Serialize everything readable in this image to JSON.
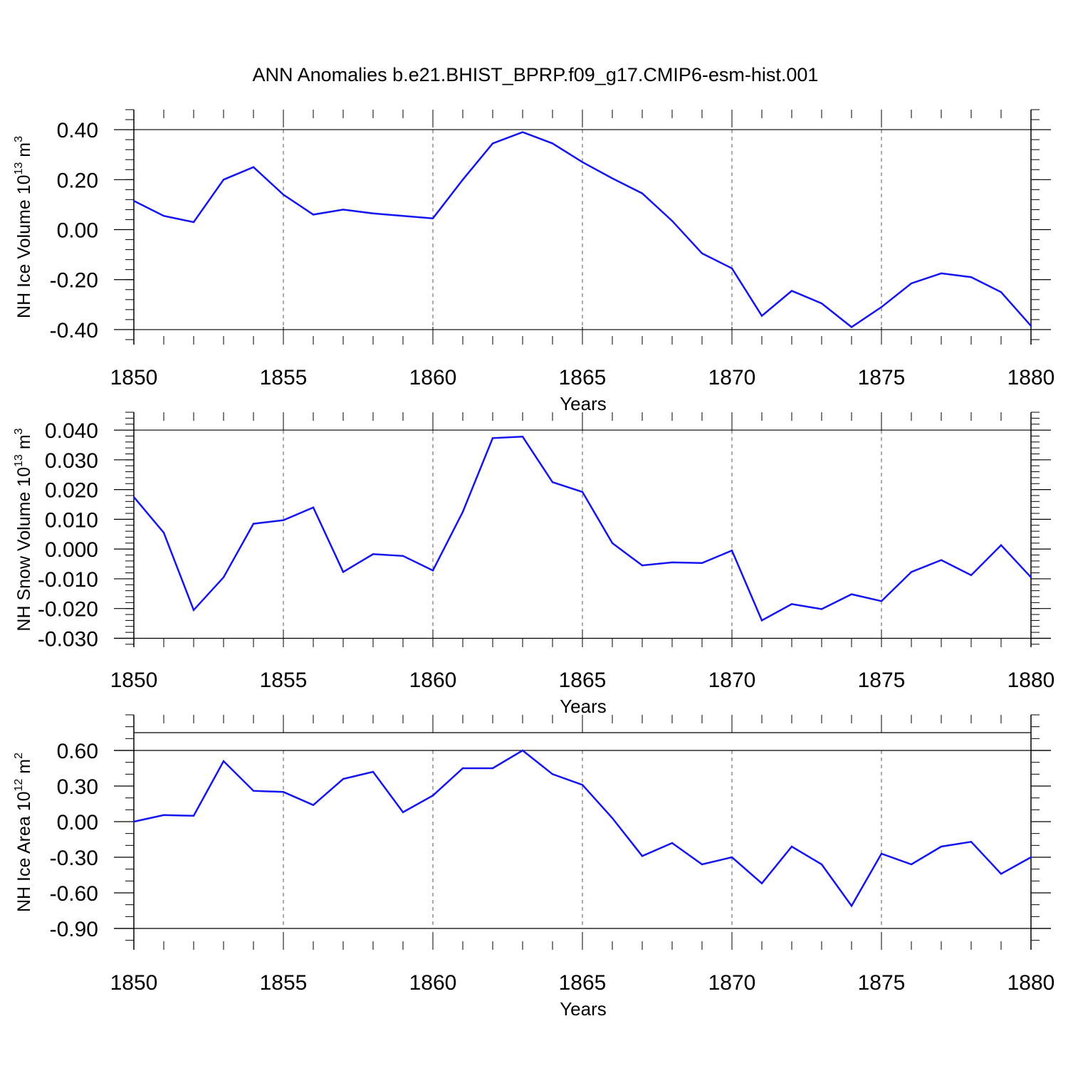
{
  "title": "ANN Anomalies b.e21.BHIST_BPRP.f09_g17.CMIP6-esm-hist.001",
  "colors": {
    "line": "#1414f0",
    "axis": "#000000",
    "grid": "#555555"
  },
  "chart_data": [
    {
      "type": "line",
      "ylabel": "NH Ice Volume 10",
      "ylabel_sup": "13",
      "ylabel_unit": " m",
      "ylabel_unit_sup": "3",
      "xlabel": "Years",
      "xlim": [
        1850,
        1880
      ],
      "ylim": [
        -0.46,
        0.48
      ],
      "yticks": [
        -0.4,
        -0.2,
        0.0,
        0.2,
        0.4
      ],
      "ytick_labels": [
        "-0.40",
        "-0.20",
        "0.00",
        "0.20",
        "0.40"
      ],
      "yminor_step": 0.04,
      "xticks": [
        1850,
        1855,
        1860,
        1865,
        1870,
        1875,
        1880
      ],
      "xtick_labels": [
        "1850",
        "1855",
        "1860",
        "1865",
        "1870",
        "1875",
        "1880"
      ],
      "grid": "dashed vertical at major x ticks",
      "x": [
        1850,
        1851,
        1852,
        1853,
        1854,
        1855,
        1856,
        1857,
        1858,
        1859,
        1860,
        1861,
        1862,
        1863,
        1864,
        1865,
        1866,
        1867,
        1868,
        1869,
        1870,
        1871,
        1872,
        1873,
        1874,
        1875,
        1876,
        1877,
        1878,
        1879,
        1880
      ],
      "values": [
        0.115,
        0.055,
        0.03,
        0.2,
        0.25,
        0.14,
        0.06,
        0.08,
        0.065,
        0.055,
        0.045,
        0.2,
        0.345,
        0.39,
        0.345,
        0.27,
        0.205,
        0.145,
        0.035,
        -0.095,
        -0.155,
        -0.345,
        -0.245,
        -0.295,
        -0.39,
        -0.31,
        -0.215,
        -0.175,
        -0.19,
        -0.25,
        -0.385
      ]
    },
    {
      "type": "line",
      "ylabel": "NH Snow Volume 10",
      "ylabel_sup": "13",
      "ylabel_unit": " m",
      "ylabel_unit_sup": "3",
      "xlabel": "Years",
      "xlim": [
        1850,
        1880
      ],
      "ylim": [
        -0.033,
        0.046
      ],
      "yticks": [
        -0.03,
        -0.02,
        -0.01,
        0.0,
        0.01,
        0.02,
        0.03,
        0.04
      ],
      "ytick_labels": [
        "-0.030",
        "-0.020",
        "-0.010",
        "0.000",
        "0.010",
        "0.020",
        "0.030",
        "0.040"
      ],
      "yminor_step": 0.002,
      "xticks": [
        1850,
        1855,
        1860,
        1865,
        1870,
        1875,
        1880
      ],
      "xtick_labels": [
        "1850",
        "1855",
        "1860",
        "1865",
        "1870",
        "1875",
        "1880"
      ],
      "grid": "dashed vertical at major x ticks",
      "x": [
        1850,
        1851,
        1852,
        1853,
        1854,
        1855,
        1856,
        1857,
        1858,
        1859,
        1860,
        1861,
        1862,
        1863,
        1864,
        1865,
        1866,
        1867,
        1868,
        1869,
        1870,
        1871,
        1872,
        1873,
        1874,
        1875,
        1876,
        1877,
        1878,
        1879,
        1880
      ],
      "values": [
        0.0175,
        0.0055,
        -0.0205,
        -0.0095,
        0.0085,
        0.0097,
        0.014,
        -0.0077,
        -0.0017,
        -0.0023,
        -0.0072,
        0.0125,
        0.0373,
        0.0378,
        0.0225,
        0.0192,
        0.002,
        -0.0055,
        -0.0045,
        -0.0047,
        -0.0005,
        -0.024,
        -0.0185,
        -0.0202,
        -0.0152,
        -0.0175,
        -0.0077,
        -0.0037,
        -0.0088,
        0.0013,
        -0.0095
      ]
    },
    {
      "type": "line",
      "ylabel": "NH Ice Area 10",
      "ylabel_sup": "12",
      "ylabel_unit": " m",
      "ylabel_unit_sup": "2",
      "xlabel": "Years",
      "xlim": [
        1850,
        1880
      ],
      "ylim": [
        -1.08,
        0.9
      ],
      "yticks": [
        -0.9,
        -0.6,
        -0.3,
        0.0,
        0.3,
        0.6
      ],
      "ytick_labels": [
        "-0.90",
        "-0.60",
        "-0.30",
        "0.00",
        "0.30",
        "0.60"
      ],
      "yminor_step": 0.1,
      "xticks": [
        1850,
        1855,
        1860,
        1865,
        1870,
        1875,
        1880
      ],
      "xtick_labels": [
        "1850",
        "1855",
        "1860",
        "1865",
        "1870",
        "1875",
        "1880"
      ],
      "grid": "dashed vertical at major x ticks",
      "x": [
        1850,
        1851,
        1852,
        1853,
        1854,
        1855,
        1856,
        1857,
        1858,
        1859,
        1860,
        1861,
        1862,
        1863,
        1864,
        1865,
        1866,
        1867,
        1868,
        1869,
        1870,
        1871,
        1872,
        1873,
        1874,
        1875,
        1876,
        1877,
        1878,
        1879,
        1880
      ],
      "values": [
        0.0,
        0.055,
        0.05,
        0.51,
        0.26,
        0.25,
        0.14,
        0.36,
        0.42,
        0.08,
        0.22,
        0.45,
        0.45,
        0.6,
        0.4,
        0.31,
        0.03,
        -0.29,
        -0.18,
        -0.36,
        -0.3,
        -0.52,
        -0.21,
        -0.36,
        -0.71,
        -0.27,
        -0.36,
        -0.21,
        -0.17,
        -0.44,
        -0.3
      ]
    }
  ]
}
